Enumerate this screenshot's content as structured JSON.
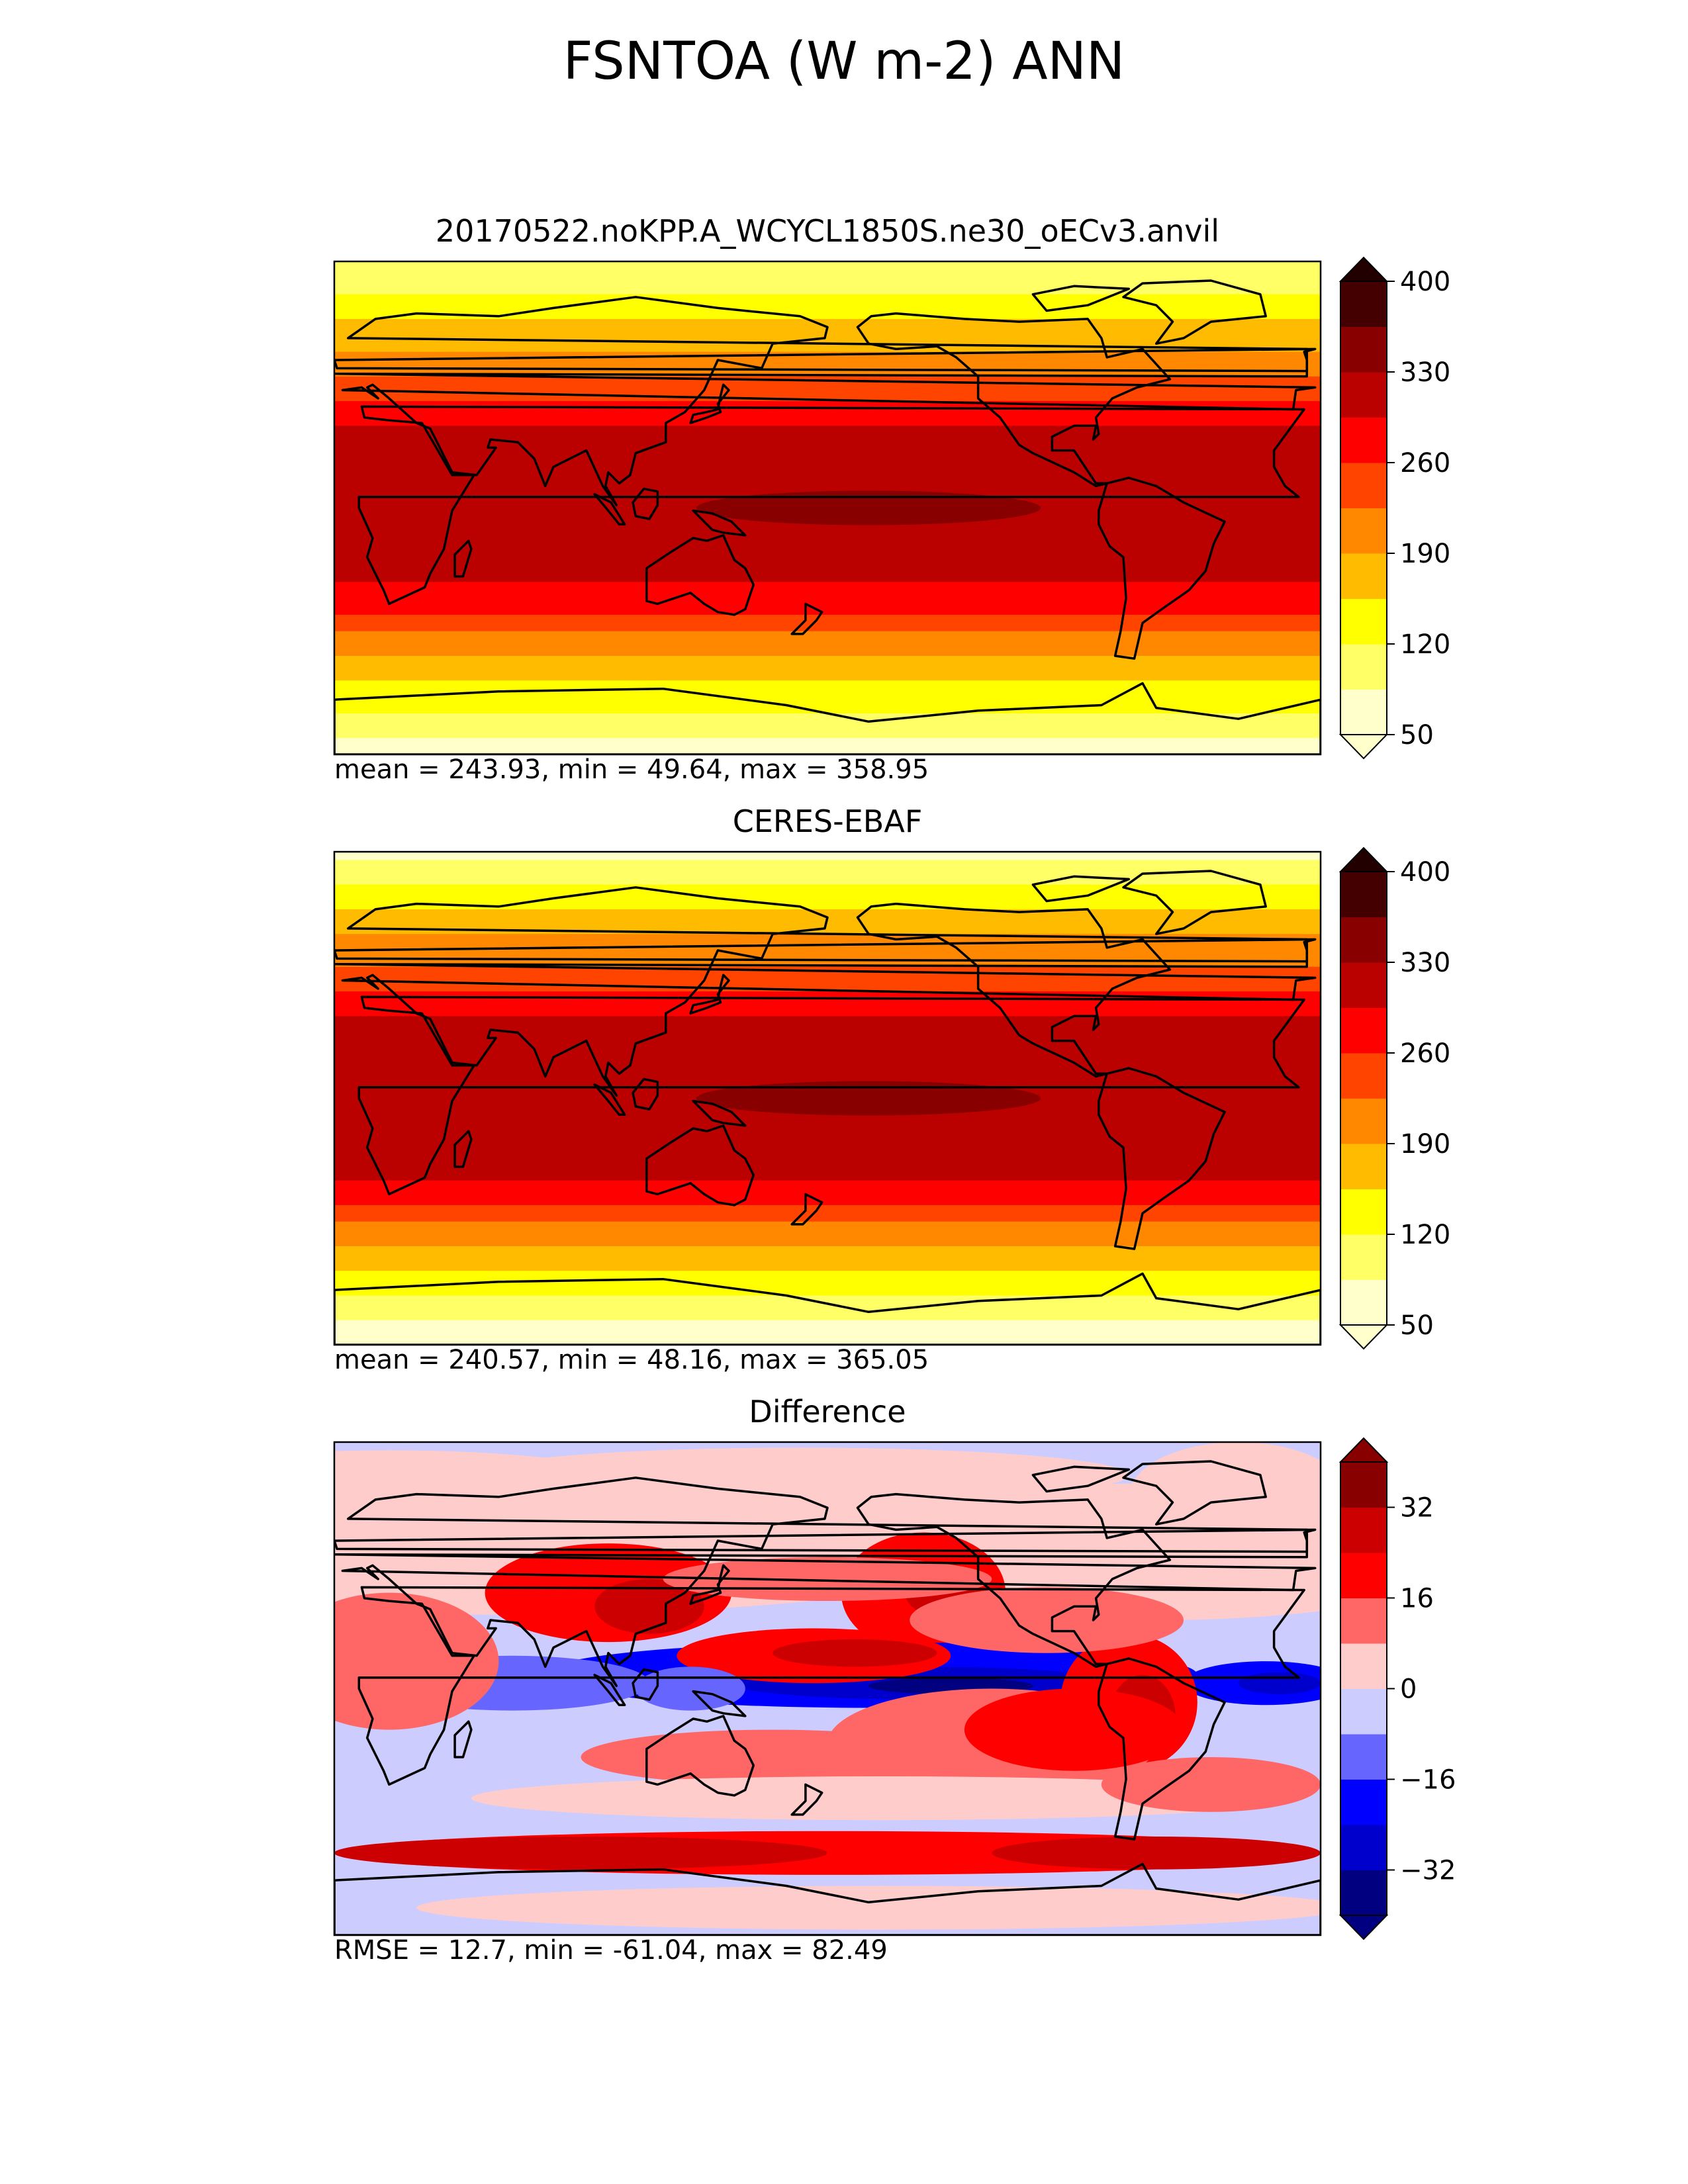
{
  "figure": {
    "title": "FSNTOA (W m-2) ANN"
  },
  "panels": [
    {
      "title": "20170522.noKPP.A_WCYCL1850S.ne30_oECv3.anvil",
      "stats": "mean = 243.93, min = 49.64, max = 358.95"
    },
    {
      "title": "CERES-EBAF",
      "stats": "mean = 240.57, min = 48.16, max = 365.05"
    },
    {
      "title": "Difference",
      "stats": "RMSE = 12.7, min = -61.04, max = 82.49"
    }
  ],
  "chart_data": [
    {
      "type": "heatmap",
      "title": "20170522.noKPP.A_WCYCL1850S.ne30_oECv3.anvil",
      "colorbar": {
        "ticks": [
          50,
          120,
          190,
          260,
          330,
          400
        ],
        "levels": [
          50,
          85,
          120,
          155,
          190,
          225,
          260,
          295,
          330,
          365,
          400
        ],
        "colors": [
          "#ffffcc",
          "#ffff66",
          "#ffff00",
          "#ffbb00",
          "#ff8800",
          "#ff4400",
          "#ff0000",
          "#bb0000",
          "#880000",
          "#440000",
          "#220000"
        ],
        "extend": "both"
      },
      "zonal_profile": {
        "lat": [
          90,
          60,
          30,
          0,
          -30,
          -60,
          -90
        ],
        "values": [
          80,
          180,
          300,
          330,
          290,
          170,
          60
        ]
      },
      "stats": {
        "mean": 243.93,
        "min": 49.64,
        "max": 358.95
      }
    },
    {
      "type": "heatmap",
      "title": "CERES-EBAF",
      "colorbar": {
        "ticks": [
          50,
          120,
          190,
          260,
          330,
          400
        ],
        "levels": [
          50,
          85,
          120,
          155,
          190,
          225,
          260,
          295,
          330,
          365,
          400
        ],
        "colors": [
          "#ffffcc",
          "#ffff66",
          "#ffff00",
          "#ffbb00",
          "#ff8800",
          "#ff4400",
          "#ff0000",
          "#bb0000",
          "#880000",
          "#440000",
          "#220000"
        ],
        "extend": "both"
      },
      "zonal_profile": {
        "lat": [
          90,
          60,
          30,
          0,
          -30,
          -60,
          -90
        ],
        "values": [
          75,
          185,
          295,
          330,
          295,
          165,
          55
        ]
      },
      "stats": {
        "mean": 240.57,
        "min": 48.16,
        "max": 365.05
      }
    },
    {
      "type": "heatmap",
      "title": "Difference",
      "colorbar": {
        "ticks": [
          -32,
          -16,
          0,
          16,
          32
        ],
        "levels": [
          -40,
          -32,
          -24,
          -16,
          -8,
          0,
          8,
          16,
          24,
          32,
          40
        ],
        "colors": [
          "#000080",
          "#0000cc",
          "#0000ff",
          "#6666ff",
          "#ccccff",
          "#ffcccc",
          "#ff6666",
          "#ff0000",
          "#cc0000",
          "#880000"
        ],
        "extend": "both"
      },
      "stats": {
        "rmse": 12.7,
        "min": -61.04,
        "max": 82.49
      }
    }
  ]
}
